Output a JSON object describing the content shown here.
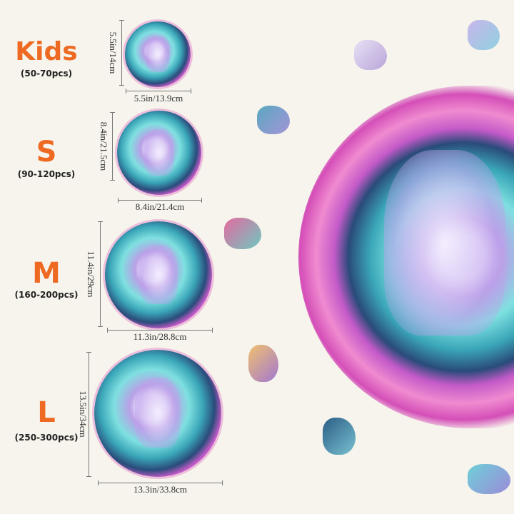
{
  "sizes": [
    {
      "label": "Kids",
      "pieces": "(50-70pcs)",
      "height": "5.5in/14cm",
      "width": "5.5in/13.9cm"
    },
    {
      "label": "S",
      "pieces": "(90-120pcs)",
      "height": "8.4in/21.5cm",
      "width": "8.4in/21.4cm"
    },
    {
      "label": "M",
      "pieces": "(160-200pcs)",
      "height": "11.4in/29cm",
      "width": "11.3in/28.8cm"
    },
    {
      "label": "L",
      "pieces": "(250-300pcs)",
      "height": "13.5in/34cm",
      "width": "13.3in/33.8cm"
    }
  ],
  "colors": {
    "accent": "#ee6a22",
    "background": "#f6f4ec"
  }
}
